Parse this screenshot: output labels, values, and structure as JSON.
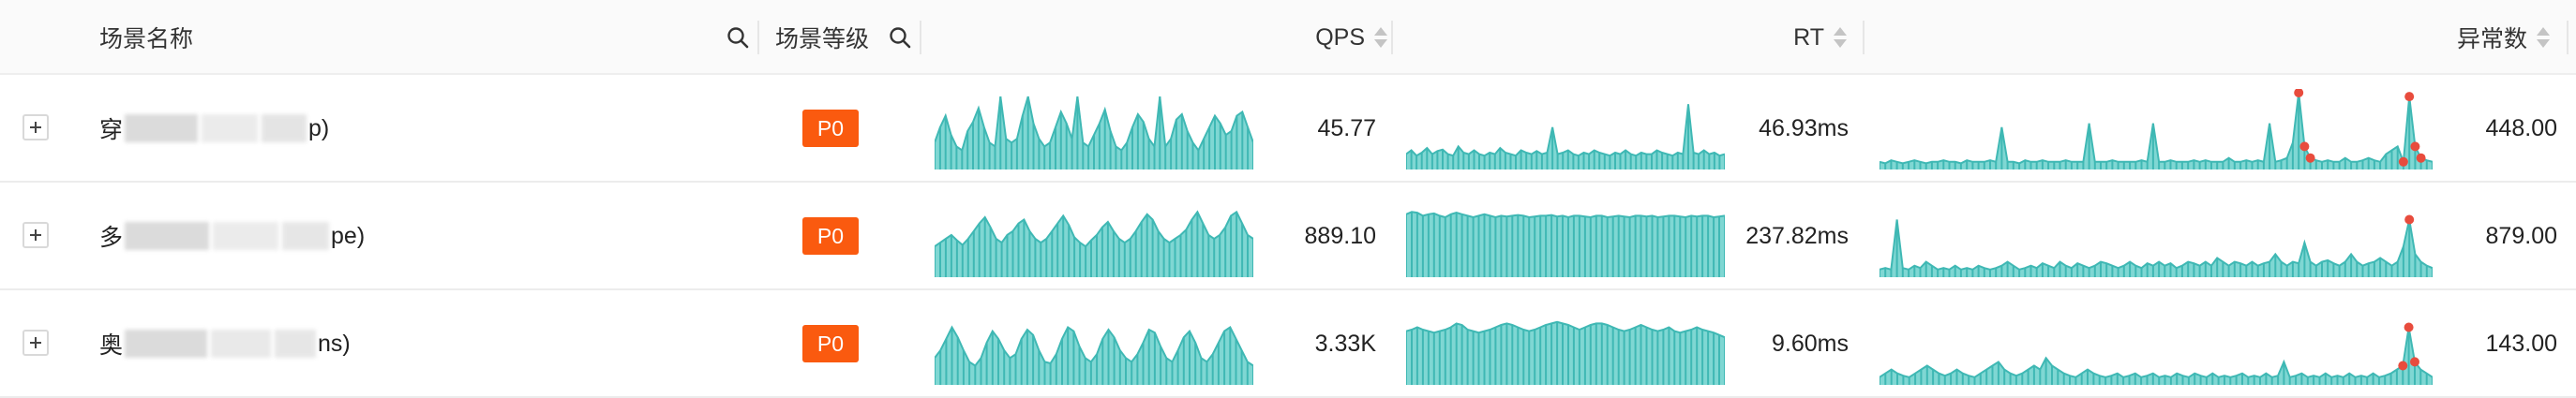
{
  "header": {
    "scene_name": "场景名称",
    "scene_level": "场景等级",
    "qps": "QPS",
    "rt": "RT",
    "anomaly_count": "异常数"
  },
  "colors": {
    "spark_fill": "#7fd7d3",
    "spark_line": "#3fb8b4",
    "anomaly_dot": "#e84c3d",
    "badge": "#fa5a0f"
  },
  "rows": [
    {
      "name_prefix": "穿",
      "name_suffix": "p)",
      "level": "P0",
      "qps": "45.77",
      "rt": "46.93ms",
      "anomaly": "448.00",
      "qps_series": [
        0.35,
        0.55,
        0.7,
        0.45,
        0.3,
        0.25,
        0.5,
        0.62,
        0.8,
        0.55,
        0.35,
        0.3,
        0.95,
        0.4,
        0.35,
        0.4,
        0.7,
        0.95,
        0.6,
        0.4,
        0.3,
        0.35,
        0.55,
        0.75,
        0.6,
        0.4,
        0.95,
        0.35,
        0.3,
        0.45,
        0.6,
        0.78,
        0.5,
        0.3,
        0.25,
        0.35,
        0.55,
        0.72,
        0.62,
        0.4,
        0.3,
        0.95,
        0.3,
        0.4,
        0.65,
        0.72,
        0.5,
        0.35,
        0.25,
        0.4,
        0.55,
        0.7,
        0.6,
        0.45,
        0.5,
        0.7,
        0.75,
        0.55,
        0.35
      ],
      "rt_series": [
        0.2,
        0.25,
        0.18,
        0.22,
        0.28,
        0.2,
        0.24,
        0.26,
        0.2,
        0.18,
        0.3,
        0.22,
        0.2,
        0.25,
        0.2,
        0.18,
        0.22,
        0.2,
        0.28,
        0.22,
        0.2,
        0.18,
        0.25,
        0.22,
        0.2,
        0.24,
        0.2,
        0.22,
        0.55,
        0.2,
        0.22,
        0.25,
        0.2,
        0.18,
        0.22,
        0.2,
        0.25,
        0.22,
        0.2,
        0.18,
        0.22,
        0.2,
        0.25,
        0.2,
        0.18,
        0.22,
        0.2,
        0.2,
        0.25,
        0.22,
        0.2,
        0.18,
        0.22,
        0.2,
        0.85,
        0.22,
        0.2,
        0.25,
        0.2,
        0.22,
        0.18,
        0.2
      ],
      "anomaly_series": [
        0.1,
        0.08,
        0.12,
        0.1,
        0.08,
        0.1,
        0.12,
        0.1,
        0.08,
        0.1,
        0.1,
        0.12,
        0.1,
        0.1,
        0.08,
        0.12,
        0.1,
        0.1,
        0.1,
        0.12,
        0.1,
        0.55,
        0.1,
        0.1,
        0.08,
        0.12,
        0.1,
        0.1,
        0.12,
        0.1,
        0.1,
        0.1,
        0.12,
        0.1,
        0.1,
        0.1,
        0.6,
        0.1,
        0.1,
        0.1,
        0.12,
        0.1,
        0.1,
        0.1,
        0.1,
        0.12,
        0.1,
        0.6,
        0.1,
        0.1,
        0.12,
        0.1,
        0.1,
        0.1,
        0.12,
        0.1,
        0.12,
        0.1,
        0.1,
        0.1,
        0.15,
        0.1,
        0.1,
        0.12,
        0.1,
        0.12,
        0.1,
        0.6,
        0.1,
        0.12,
        0.15,
        0.35,
        1.0,
        0.3,
        0.15,
        0.12,
        0.1,
        0.12,
        0.1,
        0.1,
        0.15,
        0.1,
        0.1,
        0.12,
        0.15,
        0.12,
        0.1,
        0.2,
        0.25,
        0.3,
        0.1,
        0.95,
        0.3,
        0.15,
        0.12,
        0.1
      ],
      "anomaly_points": [
        72,
        73,
        74,
        90,
        91,
        92,
        93
      ]
    },
    {
      "name_prefix": "多",
      "name_suffix": "pe)",
      "level": "P0",
      "qps": "889.10",
      "rt": "237.82ms",
      "anomaly": "879.00",
      "qps_series": [
        0.4,
        0.45,
        0.5,
        0.55,
        0.48,
        0.42,
        0.5,
        0.6,
        0.7,
        0.78,
        0.65,
        0.5,
        0.45,
        0.55,
        0.6,
        0.7,
        0.75,
        0.6,
        0.5,
        0.45,
        0.5,
        0.6,
        0.7,
        0.8,
        0.68,
        0.52,
        0.45,
        0.4,
        0.48,
        0.55,
        0.65,
        0.72,
        0.6,
        0.5,
        0.45,
        0.5,
        0.6,
        0.72,
        0.82,
        0.75,
        0.6,
        0.5,
        0.45,
        0.5,
        0.55,
        0.62,
        0.75,
        0.85,
        0.7,
        0.55,
        0.5,
        0.55,
        0.65,
        0.8,
        0.85,
        0.7,
        0.55,
        0.5
      ],
      "rt_series": [
        0.82,
        0.85,
        0.84,
        0.8,
        0.82,
        0.83,
        0.8,
        0.78,
        0.82,
        0.84,
        0.82,
        0.8,
        0.78,
        0.8,
        0.82,
        0.8,
        0.78,
        0.8,
        0.79,
        0.8,
        0.81,
        0.8,
        0.78,
        0.79,
        0.8,
        0.8,
        0.81,
        0.79,
        0.8,
        0.78,
        0.8,
        0.8,
        0.79,
        0.78,
        0.8,
        0.8,
        0.78,
        0.79,
        0.8,
        0.79,
        0.78,
        0.8,
        0.8,
        0.79,
        0.8,
        0.78,
        0.79,
        0.8,
        0.8,
        0.79,
        0.78,
        0.8,
        0.79,
        0.8,
        0.8,
        0.78,
        0.79,
        0.8
      ],
      "anomaly_series": [
        0.1,
        0.12,
        0.1,
        0.75,
        0.12,
        0.1,
        0.15,
        0.12,
        0.2,
        0.15,
        0.1,
        0.12,
        0.1,
        0.15,
        0.1,
        0.12,
        0.1,
        0.15,
        0.12,
        0.1,
        0.12,
        0.15,
        0.2,
        0.15,
        0.1,
        0.12,
        0.15,
        0.12,
        0.18,
        0.15,
        0.12,
        0.2,
        0.15,
        0.12,
        0.18,
        0.15,
        0.12,
        0.15,
        0.2,
        0.18,
        0.15,
        0.12,
        0.15,
        0.2,
        0.15,
        0.12,
        0.18,
        0.15,
        0.2,
        0.15,
        0.18,
        0.12,
        0.15,
        0.2,
        0.18,
        0.15,
        0.2,
        0.15,
        0.25,
        0.2,
        0.15,
        0.2,
        0.18,
        0.15,
        0.2,
        0.15,
        0.18,
        0.2,
        0.3,
        0.2,
        0.15,
        0.2,
        0.18,
        0.45,
        0.2,
        0.15,
        0.2,
        0.22,
        0.18,
        0.15,
        0.2,
        0.3,
        0.2,
        0.15,
        0.18,
        0.2,
        0.25,
        0.2,
        0.15,
        0.2,
        0.4,
        0.75,
        0.3,
        0.2,
        0.15,
        0.12
      ],
      "anomaly_points": [
        91
      ]
    },
    {
      "name_prefix": "奥",
      "name_suffix": "ns)",
      "level": "P0",
      "qps": "3.33K",
      "rt": "9.60ms",
      "anomaly": "143.00",
      "qps_series": [
        0.35,
        0.45,
        0.6,
        0.75,
        0.62,
        0.45,
        0.3,
        0.25,
        0.35,
        0.55,
        0.7,
        0.6,
        0.45,
        0.35,
        0.4,
        0.6,
        0.72,
        0.65,
        0.45,
        0.3,
        0.28,
        0.4,
        0.6,
        0.75,
        0.7,
        0.5,
        0.35,
        0.3,
        0.4,
        0.6,
        0.72,
        0.62,
        0.45,
        0.35,
        0.3,
        0.4,
        0.55,
        0.72,
        0.68,
        0.5,
        0.35,
        0.3,
        0.45,
        0.62,
        0.7,
        0.55,
        0.35,
        0.3,
        0.4,
        0.55,
        0.7,
        0.75,
        0.6,
        0.45,
        0.3,
        0.25
      ],
      "rt_series": [
        0.7,
        0.72,
        0.75,
        0.72,
        0.7,
        0.68,
        0.7,
        0.72,
        0.75,
        0.8,
        0.78,
        0.72,
        0.7,
        0.68,
        0.7,
        0.72,
        0.75,
        0.78,
        0.8,
        0.78,
        0.75,
        0.72,
        0.7,
        0.72,
        0.75,
        0.78,
        0.8,
        0.82,
        0.8,
        0.78,
        0.75,
        0.72,
        0.75,
        0.78,
        0.8,
        0.8,
        0.78,
        0.75,
        0.72,
        0.7,
        0.72,
        0.75,
        0.78,
        0.75,
        0.72,
        0.7,
        0.72,
        0.75,
        0.7,
        0.68,
        0.7,
        0.72,
        0.75,
        0.72,
        0.7,
        0.68,
        0.65,
        0.62
      ],
      "anomaly_series": [
        0.1,
        0.15,
        0.2,
        0.15,
        0.12,
        0.1,
        0.15,
        0.2,
        0.25,
        0.2,
        0.15,
        0.12,
        0.15,
        0.2,
        0.15,
        0.12,
        0.1,
        0.15,
        0.2,
        0.25,
        0.3,
        0.2,
        0.15,
        0.12,
        0.15,
        0.2,
        0.25,
        0.2,
        0.35,
        0.25,
        0.2,
        0.15,
        0.12,
        0.1,
        0.15,
        0.2,
        0.15,
        0.12,
        0.1,
        0.12,
        0.15,
        0.1,
        0.12,
        0.15,
        0.1,
        0.12,
        0.15,
        0.1,
        0.12,
        0.1,
        0.15,
        0.12,
        0.1,
        0.15,
        0.12,
        0.1,
        0.15,
        0.1,
        0.12,
        0.1,
        0.12,
        0.15,
        0.1,
        0.12,
        0.1,
        0.15,
        0.1,
        0.12,
        0.3,
        0.1,
        0.12,
        0.15,
        0.1,
        0.12,
        0.1,
        0.15,
        0.1,
        0.12,
        0.1,
        0.15,
        0.1,
        0.12,
        0.1,
        0.15,
        0.1,
        0.12,
        0.15,
        0.2,
        0.25,
        0.75,
        0.3,
        0.2,
        0.15,
        0.1
      ],
      "anomaly_points": [
        88,
        89,
        90
      ]
    }
  ]
}
